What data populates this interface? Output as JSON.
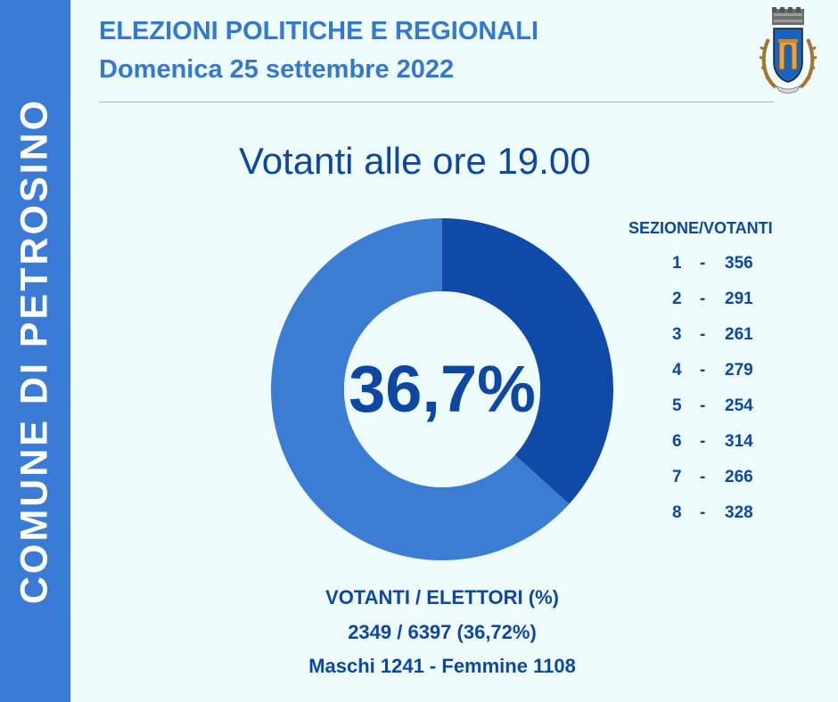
{
  "side_label": "COMUNE DI PETROSINO",
  "header": {
    "title": "ELEZIONI POLITICHE E REGIONALI",
    "date": "Domenica 25 settembre 2022"
  },
  "colors": {
    "band": "#3a7bd5",
    "header_text": "#3478cf",
    "dark_text": "#0e47a1",
    "slice_voted": "#0f4aa8",
    "slice_rest": "#3c7dd4",
    "background": "#eefcfd"
  },
  "icons": [
    "coat-of-arms-icon"
  ],
  "chart_data": {
    "type": "pie",
    "title": "Votanti alle ore 19.00",
    "center_label": "36,7%",
    "slices": [
      {
        "value": 36.7,
        "color": "#0f4aa8"
      },
      {
        "value": 63.3,
        "color": "#3c7dd4"
      }
    ]
  },
  "sezioni": {
    "header": "SEZIONE/VOTANTI",
    "rows": [
      {
        "num": "1",
        "sep": "-",
        "val": "356"
      },
      {
        "num": "2",
        "sep": "-",
        "val": "291"
      },
      {
        "num": "3",
        "sep": "-",
        "val": "261"
      },
      {
        "num": "4",
        "sep": "-",
        "val": "279"
      },
      {
        "num": "5",
        "sep": "-",
        "val": "254"
      },
      {
        "num": "6",
        "sep": "-",
        "val": "314"
      },
      {
        "num": "7",
        "sep": "-",
        "val": "266"
      },
      {
        "num": "8",
        "sep": "-",
        "val": "328"
      }
    ]
  },
  "footer": {
    "line1": "VOTANTI / ELETTORI (%)",
    "line2": "2349 / 6397 (36,72%)",
    "line3": "Maschi 1241 - Femmine 1108"
  }
}
